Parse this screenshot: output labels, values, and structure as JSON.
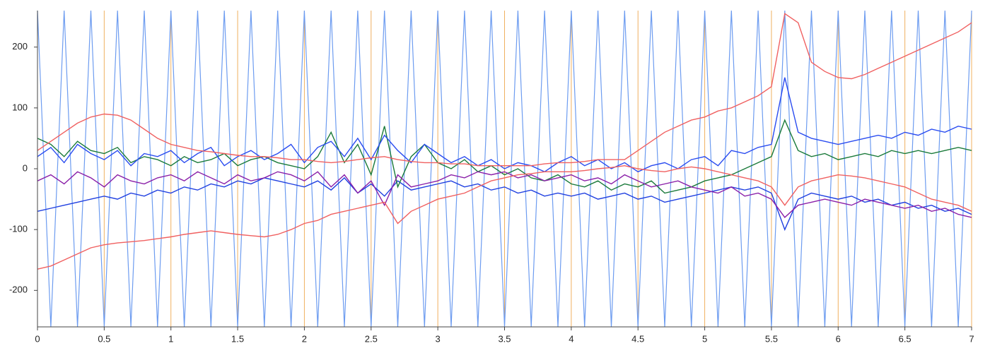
{
  "chart_data": {
    "type": "line",
    "x": [
      0,
      0.1,
      0.2,
      0.3,
      0.4,
      0.5,
      0.6,
      0.7,
      0.8,
      0.9,
      1,
      1.1,
      1.2,
      1.3,
      1.4,
      1.5,
      1.6,
      1.7,
      1.8,
      1.9,
      2,
      2.1,
      2.2,
      2.3,
      2.4,
      2.5,
      2.6,
      2.7,
      2.8,
      2.9,
      3,
      3.1,
      3.2,
      3.3,
      3.4,
      3.5,
      3.6,
      3.7,
      3.8,
      3.9,
      4,
      4.1,
      4.2,
      4.3,
      4.4,
      4.5,
      4.6,
      4.7,
      4.8,
      4.9,
      5,
      5.1,
      5.2,
      5.3,
      5.4,
      5.5,
      5.6,
      5.7,
      5.8,
      5.9,
      6,
      6.1,
      6.2,
      6.3,
      6.4,
      6.5,
      6.6,
      6.7,
      6.8,
      6.9,
      7
    ],
    "series": [
      {
        "color": "#6d9cf0",
        "values": [
          260,
          -260,
          260,
          -260,
          260,
          -260,
          260,
          -260,
          260,
          -260,
          260,
          -260,
          260,
          -260,
          260,
          -260,
          260,
          -260,
          260,
          -260,
          260,
          -260,
          260,
          -260,
          260,
          -260,
          260,
          -260,
          260,
          -260,
          260,
          -260,
          260,
          -260,
          260,
          -260,
          260,
          -260,
          260,
          -260,
          260,
          -260,
          260,
          -260,
          260,
          -260,
          260,
          -260,
          260,
          -260,
          260,
          -260,
          260,
          -260,
          260,
          -260,
          260,
          -260,
          260,
          -260,
          260,
          -260,
          260,
          -260,
          260,
          -260,
          260,
          -260,
          260,
          -260,
          260
        ]
      },
      {
        "color": "#1f3fe0",
        "values": [
          -70,
          -65,
          -60,
          -55,
          -50,
          -45,
          -50,
          -40,
          -45,
          -35,
          -40,
          -30,
          -35,
          -25,
          -30,
          -20,
          -25,
          -15,
          -20,
          -25,
          -30,
          -20,
          -35,
          -15,
          -40,
          -25,
          -45,
          -20,
          -35,
          -30,
          -25,
          -20,
          -30,
          -25,
          -35,
          -30,
          -40,
          -35,
          -45,
          -40,
          -45,
          -40,
          -50,
          -45,
          -40,
          -50,
          -45,
          -55,
          -50,
          -45,
          -40,
          -35,
          -30,
          -35,
          -30,
          -40,
          -100,
          -50,
          -40,
          -45,
          -50,
          -45,
          -55,
          -50,
          -60,
          -55,
          -65,
          -60,
          -70,
          -65,
          -75
        ]
      },
      {
        "color": "#1a7a3a",
        "values": [
          50,
          40,
          20,
          45,
          30,
          25,
          35,
          10,
          20,
          15,
          5,
          20,
          10,
          15,
          25,
          5,
          15,
          20,
          10,
          5,
          0,
          20,
          60,
          10,
          40,
          -10,
          70,
          -30,
          20,
          40,
          10,
          0,
          15,
          -5,
          5,
          -10,
          0,
          -15,
          -20,
          -10,
          -25,
          -30,
          -20,
          -35,
          -25,
          -30,
          -20,
          -40,
          -35,
          -30,
          -20,
          -15,
          -10,
          0,
          10,
          20,
          80,
          30,
          20,
          25,
          15,
          20,
          25,
          20,
          30,
          25,
          30,
          25,
          30,
          35,
          30
        ]
      },
      {
        "color": "#8a1fa8",
        "values": [
          -20,
          -10,
          -25,
          -5,
          -15,
          -30,
          -10,
          -20,
          -25,
          -15,
          -10,
          -20,
          -5,
          -15,
          -25,
          -10,
          -20,
          -15,
          -5,
          -10,
          -20,
          -5,
          -30,
          -10,
          -40,
          -20,
          -60,
          -10,
          -30,
          -25,
          -20,
          -10,
          -15,
          -5,
          -10,
          -5,
          -15,
          -10,
          -20,
          -15,
          -10,
          -20,
          -15,
          -25,
          -10,
          -20,
          -30,
          -25,
          -20,
          -30,
          -35,
          -40,
          -30,
          -45,
          -40,
          -50,
          -80,
          -60,
          -55,
          -50,
          -55,
          -60,
          -50,
          -55,
          -60,
          -65,
          -60,
          -70,
          -65,
          -75,
          -80
        ]
      },
      {
        "color": "#2a4cf0",
        "values": [
          20,
          35,
          10,
          40,
          25,
          15,
          30,
          5,
          25,
          20,
          30,
          10,
          25,
          35,
          5,
          20,
          30,
          15,
          25,
          40,
          10,
          35,
          45,
          20,
          50,
          15,
          55,
          30,
          10,
          40,
          25,
          10,
          20,
          5,
          15,
          0,
          10,
          5,
          -5,
          10,
          20,
          5,
          15,
          0,
          10,
          -5,
          5,
          10,
          0,
          15,
          20,
          5,
          30,
          25,
          35,
          40,
          150,
          60,
          50,
          45,
          40,
          45,
          50,
          55,
          50,
          60,
          55,
          65,
          60,
          70,
          65
        ]
      },
      {
        "color": "#f06060",
        "values": [
          30,
          45,
          60,
          75,
          85,
          90,
          88,
          80,
          65,
          50,
          40,
          35,
          30,
          28,
          25,
          22,
          20,
          20,
          18,
          15,
          15,
          12,
          10,
          12,
          15,
          18,
          20,
          15,
          12,
          10,
          10,
          8,
          8,
          5,
          5,
          5,
          5,
          5,
          8,
          10,
          10,
          12,
          15,
          15,
          15,
          30,
          45,
          60,
          70,
          80,
          85,
          95,
          100,
          110,
          120,
          135,
          255,
          240,
          175,
          160,
          150,
          148,
          155,
          165,
          175,
          185,
          195,
          205,
          215,
          225,
          240
        ]
      },
      {
        "color": "#f06060",
        "values": [
          -165,
          -160,
          -150,
          -140,
          -130,
          -125,
          -122,
          -120,
          -118,
          -115,
          -112,
          -108,
          -105,
          -102,
          -105,
          -108,
          -110,
          -112,
          -108,
          -100,
          -90,
          -85,
          -75,
          -70,
          -65,
          -60,
          -55,
          -90,
          -70,
          -60,
          -50,
          -45,
          -40,
          -30,
          -20,
          -15,
          -10,
          -8,
          -5,
          -5,
          -5,
          -3,
          0,
          2,
          5,
          0,
          -3,
          -5,
          0,
          3,
          0,
          -5,
          -10,
          -15,
          -20,
          -30,
          -60,
          -30,
          -20,
          -15,
          -10,
          -12,
          -15,
          -20,
          -25,
          -30,
          -40,
          -50,
          -55,
          -60,
          -70
        ]
      }
    ],
    "xlim": [
      0,
      7
    ],
    "ylim": [
      -260,
      260
    ],
    "xticks": [
      0,
      0.5,
      1,
      1.5,
      2,
      2.5,
      3,
      3.5,
      4,
      4.5,
      5,
      5.5,
      6,
      6.5,
      7
    ],
    "yticks": [
      -200,
      -100,
      0,
      100,
      200
    ],
    "grid": true,
    "grid_color": "#f0b060"
  }
}
